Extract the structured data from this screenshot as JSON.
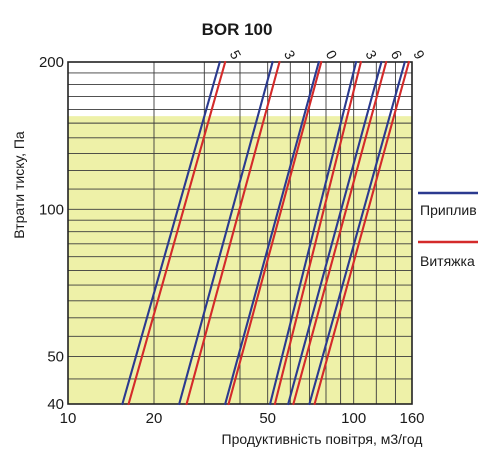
{
  "chart_data": {
    "type": "line",
    "title": "BOR 100",
    "xlabel": "Продуктивність повітря, м3/год",
    "ylabel": "Втрати тиску, Па",
    "x_scale": "log",
    "y_scale": "log",
    "xlim": [
      10,
      160
    ],
    "ylim": [
      40,
      200
    ],
    "x_ticks": [
      10,
      20,
      50,
      100,
      160
    ],
    "x_tick_labels": [
      "10",
      "20",
      "50",
      "100",
      "160"
    ],
    "y_ticks": [
      40,
      50,
      100,
      200
    ],
    "y_tick_labels": [
      "40",
      "50",
      "100",
      "200"
    ],
    "grid": true,
    "highlight_band": {
      "color": "#eef1a8",
      "y_range": [
        40,
        155
      ]
    },
    "legend": {
      "position": "right",
      "entries": [
        {
          "label": "Приплив",
          "color": "#2b3a8f"
        },
        {
          "label": "Витяжка",
          "color": "#d42a2a"
        }
      ]
    },
    "curve_labels": [
      "5",
      "3",
      "0",
      "3",
      "6",
      "9"
    ],
    "series": [
      {
        "label_index": 0,
        "kind": "supply",
        "color": "#2b3a8f",
        "points": [
          [
            15.5,
            40
          ],
          [
            34,
            200
          ]
        ]
      },
      {
        "label_index": 0,
        "kind": "extract",
        "color": "#d42a2a",
        "points": [
          [
            16.3,
            40
          ],
          [
            35.5,
            200
          ]
        ]
      },
      {
        "label_index": 1,
        "kind": "supply",
        "color": "#2b3a8f",
        "points": [
          [
            24.5,
            40
          ],
          [
            52,
            200
          ]
        ]
      },
      {
        "label_index": 1,
        "kind": "extract",
        "color": "#d42a2a",
        "points": [
          [
            26,
            40
          ],
          [
            55,
            200
          ]
        ]
      },
      {
        "label_index": 2,
        "kind": "supply",
        "color": "#2b3a8f",
        "points": [
          [
            35.5,
            40
          ],
          [
            75.5,
            200
          ]
        ]
      },
      {
        "label_index": 2,
        "kind": "extract",
        "color": "#d42a2a",
        "points": [
          [
            36.5,
            40
          ],
          [
            77,
            200
          ]
        ]
      },
      {
        "label_index": 3,
        "kind": "supply",
        "color": "#2b3a8f",
        "points": [
          [
            51,
            40
          ],
          [
            102,
            200
          ]
        ]
      },
      {
        "label_index": 3,
        "kind": "extract",
        "color": "#d42a2a",
        "points": [
          [
            53,
            40
          ],
          [
            106,
            200
          ]
        ]
      },
      {
        "label_index": 4,
        "kind": "supply",
        "color": "#2b3a8f",
        "points": [
          [
            59,
            40
          ],
          [
            125,
            200
          ]
        ]
      },
      {
        "label_index": 4,
        "kind": "extract",
        "color": "#d42a2a",
        "points": [
          [
            61.5,
            40
          ],
          [
            130,
            200
          ]
        ]
      },
      {
        "label_index": 5,
        "kind": "supply",
        "color": "#2b3a8f",
        "points": [
          [
            70,
            40
          ],
          [
            151,
            200
          ]
        ]
      },
      {
        "label_index": 5,
        "kind": "extract",
        "color": "#d42a2a",
        "points": [
          [
            73,
            40
          ],
          [
            156,
            200
          ]
        ]
      }
    ]
  }
}
